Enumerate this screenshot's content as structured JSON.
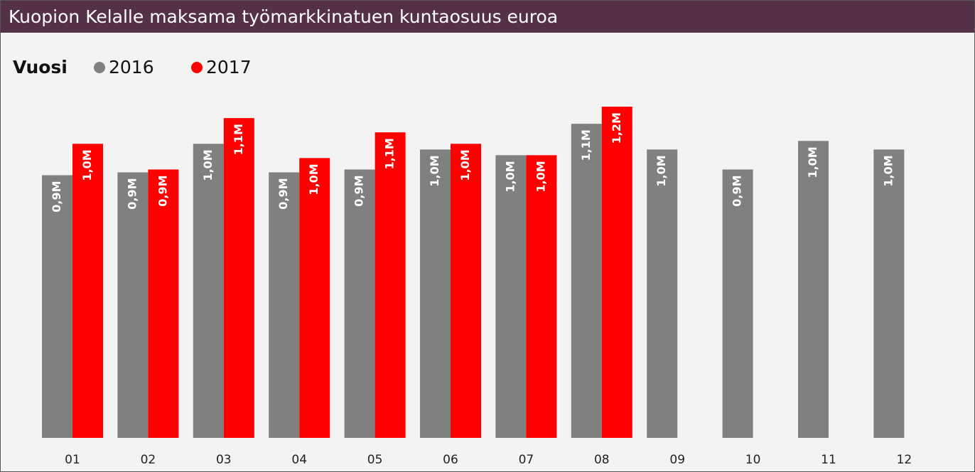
{
  "chart_data": {
    "type": "bar",
    "title": "Kuopion Kelalle maksama työmarkkinatuen kuntaosuus euroa",
    "legend_title": "Vuosi",
    "categories": [
      "01",
      "02",
      "03",
      "04",
      "05",
      "06",
      "07",
      "08",
      "09",
      "10",
      "11",
      "12"
    ],
    "series": [
      {
        "name": "2016",
        "color": "#808080",
        "values": [
          0.92,
          0.93,
          1.03,
          0.93,
          0.94,
          1.01,
          0.99,
          1.1,
          1.01,
          0.94,
          1.04,
          1.01
        ],
        "value_labels": [
          "0,9M",
          "0,9M",
          "1,0M",
          "0,9M",
          "0,9M",
          "1,0M",
          "1,0M",
          "1,1M",
          "1,0M",
          "0,9M",
          "1,0M",
          "1,0M"
        ]
      },
      {
        "name": "2017",
        "color": "#ff0000",
        "values": [
          1.03,
          0.94,
          1.12,
          0.98,
          1.07,
          1.03,
          0.99,
          1.16,
          null,
          null,
          null,
          null
        ],
        "value_labels": [
          "1,0M",
          "0,9M",
          "1,1M",
          "1,0M",
          "1,1M",
          "1,0M",
          "1,0M",
          "1,2M",
          null,
          null,
          null,
          null
        ]
      }
    ],
    "ylim": [
      0,
      1.2
    ]
  }
}
